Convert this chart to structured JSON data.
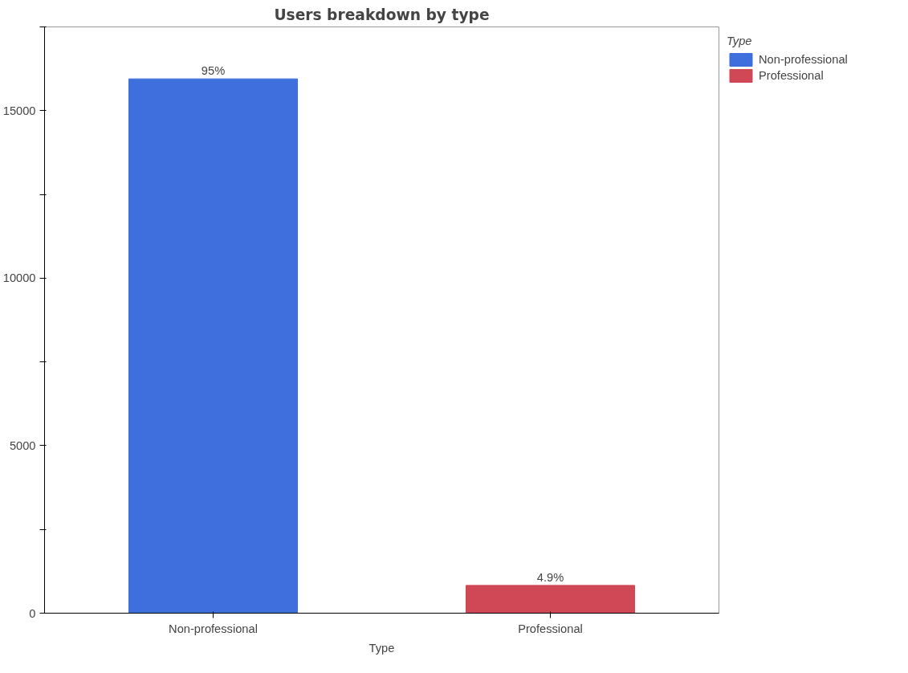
{
  "chart_data": {
    "type": "bar",
    "title": "Users breakdown by type",
    "xlabel": "Type",
    "legend_title": "Type",
    "categories": [
      "Non-professional",
      "Professional"
    ],
    "series": [
      {
        "name": "Non-professional",
        "color": "#3f6fdd",
        "values": [
          15950,
          null
        ]
      },
      {
        "name": "Professional",
        "color": "#d04756",
        "values": [
          null,
          830
        ]
      }
    ],
    "annotations": [
      {
        "text": "95%",
        "x": "Non-professional",
        "y": 15950
      },
      {
        "text": "4.9%",
        "x": "Professional",
        "y": 830
      }
    ],
    "ylim": [
      0,
      17500
    ],
    "yticks": [
      0,
      {
        "value": 2500,
        "label": null
      },
      5000,
      {
        "value": 7500,
        "label": null
      },
      10000,
      {
        "value": 12500,
        "label": null
      },
      15000,
      {
        "value": 17500,
        "label": null
      }
    ],
    "grid": false,
    "legend": "right"
  }
}
